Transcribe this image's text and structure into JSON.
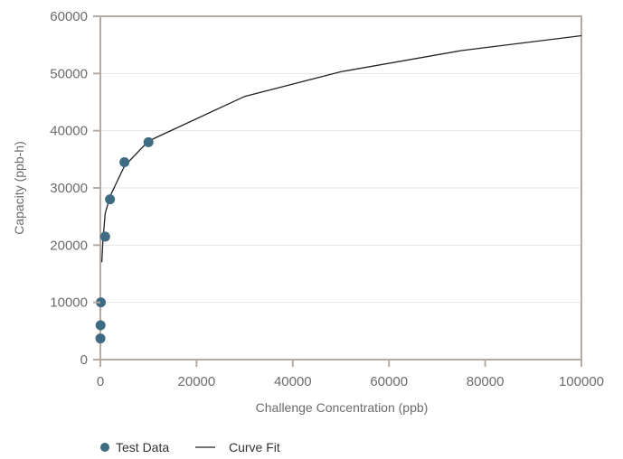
{
  "chart_data": {
    "type": "scatter",
    "title": "",
    "xlabel": "Challenge Concentration (ppb)",
    "ylabel": "Capacity (ppb-h)",
    "xlim": [
      0,
      100000
    ],
    "ylim": [
      0,
      60000
    ],
    "x_ticks": [
      "0",
      "20000",
      "40000",
      "60000",
      "80000",
      "100000"
    ],
    "y_ticks": [
      "0",
      "10000",
      "20000",
      "30000",
      "40000",
      "50000",
      "60000"
    ],
    "grid": "horizontal",
    "legend_position": "bottom-left",
    "series": [
      {
        "name": "Test Data",
        "kind": "markers",
        "color": "#3f6b82",
        "x": [
          10,
          40,
          100,
          1000,
          2000,
          5000,
          10000
        ],
        "y": [
          3700,
          6000,
          10000,
          21500,
          28000,
          34500,
          38000
        ]
      },
      {
        "name": "Curve Fit",
        "kind": "line",
        "color": "#222222",
        "x": [
          300,
          500,
          1000,
          2000,
          5000,
          10000,
          30000,
          50000,
          75000,
          100000
        ],
        "y": [
          17000,
          20500,
          25500,
          28500,
          33800,
          38200,
          46000,
          50300,
          54000,
          56600
        ]
      }
    ]
  }
}
